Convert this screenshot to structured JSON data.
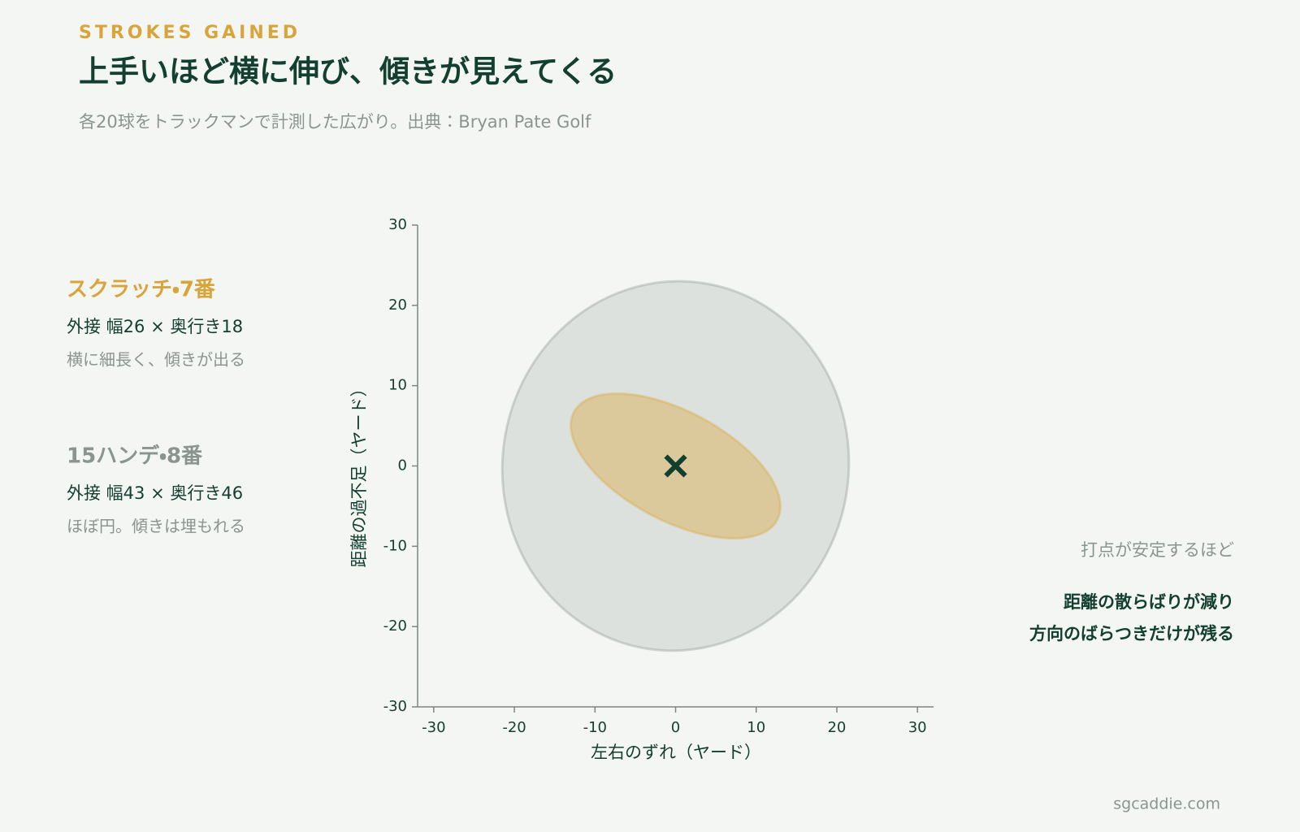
{
  "chart_data": {
    "type": "ellipse",
    "eyebrow": "STROKES GAINED",
    "title": "上手いほど横に伸び、傾きが見えてくる",
    "subtitle": "各20球をトラックマンで計測した広がり。出典：Bryan Pate Golf",
    "x_label": "左右のずれ（ヤード）",
    "y_label": "距離の過不足（ヤード）",
    "xlim": [
      -32,
      32
    ],
    "ylim": [
      -30,
      30
    ],
    "xticks": [
      -30,
      -20,
      -10,
      0,
      10,
      20,
      30
    ],
    "yticks": [
      -30,
      -20,
      -10,
      0,
      10,
      20,
      30
    ],
    "series": [
      {
        "name": "15ハンデ・8番",
        "color": "#8a958f",
        "label": "外接 幅43 × 奥行き46",
        "note": "ほぼ円。傾きは埋もれる",
        "center": [
          0,
          0
        ],
        "width": 43,
        "height": 46,
        "angle": -8
      },
      {
        "name": "スクラッチ・7番",
        "color": "#d9a53a",
        "label": "外接 幅26 × 奥行き18",
        "note": "横に細長く、傾きが出る",
        "center": [
          0,
          0
        ],
        "width": 26,
        "height": 18,
        "angle": -28
      }
    ],
    "marker": {
      "x": 0,
      "y": 0
    },
    "annotation": [
      "打点が安定するほど",
      "距離の散らばりが減り",
      "方向のばらつきだけが残る"
    ],
    "footer": "sgcaddie.com"
  }
}
